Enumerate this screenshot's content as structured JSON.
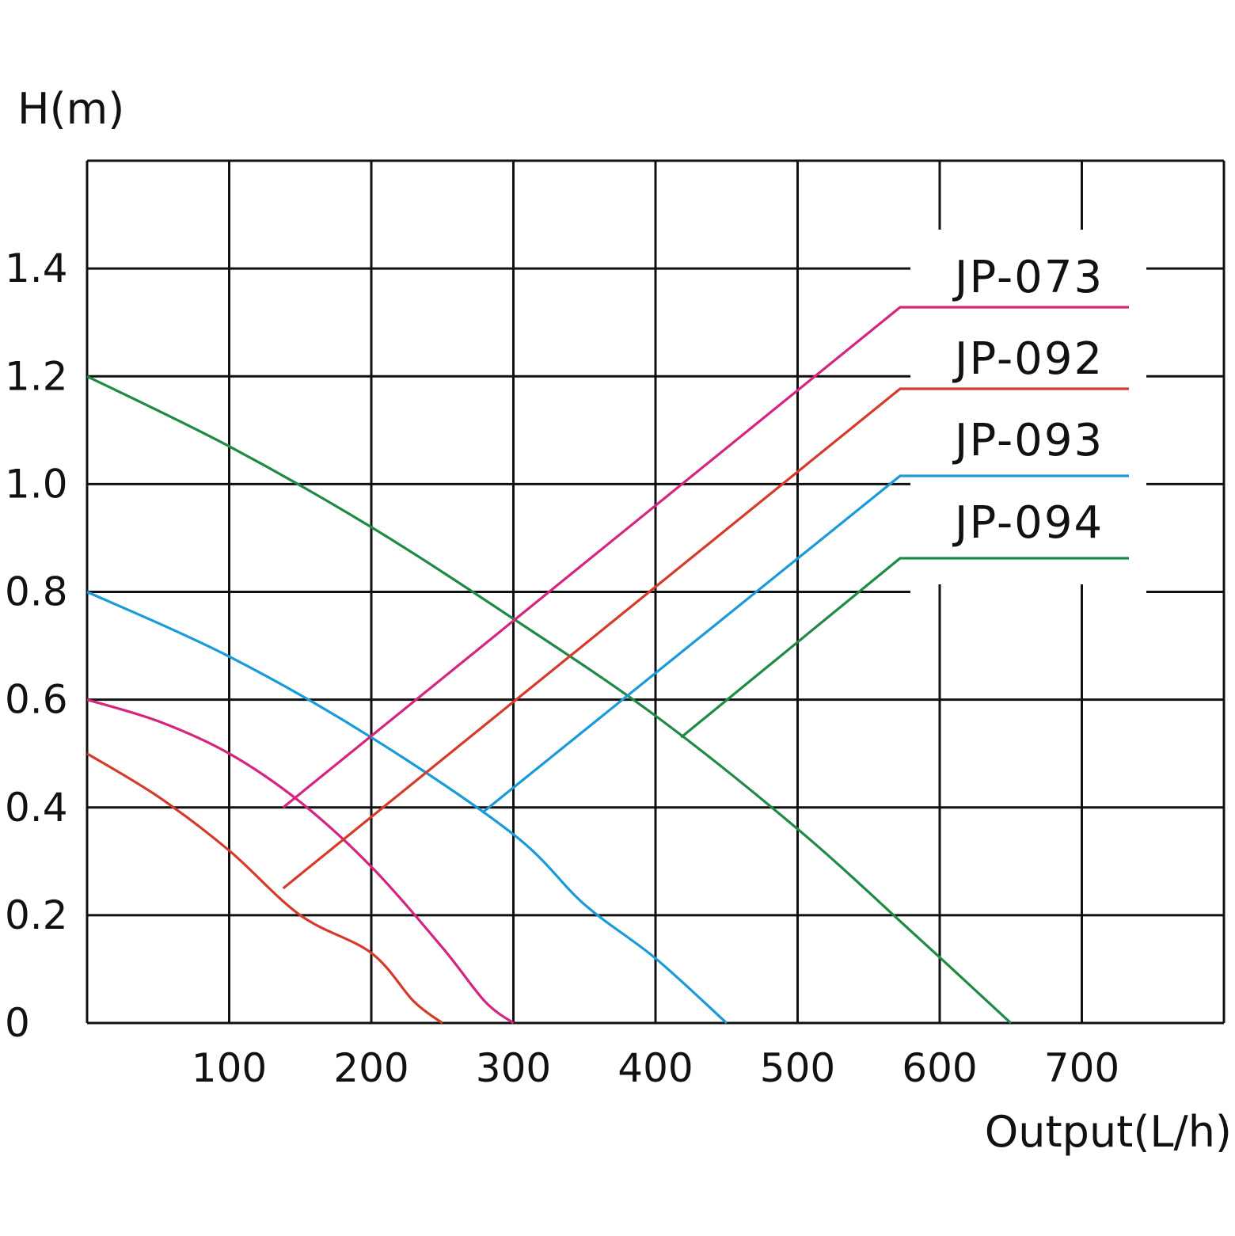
{
  "chart_data": {
    "type": "line",
    "ylabel": "H(m)",
    "xlabel": "Output(L/h)",
    "x_ticks": [
      "100",
      "200",
      "300",
      "400",
      "500",
      "600",
      "700"
    ],
    "y_ticks": [
      "0",
      "0.2",
      "0.4",
      "0.6",
      "0.8",
      "1.0",
      "1.2",
      "1.4"
    ],
    "xlim": [
      0,
      800
    ],
    "ylim": [
      0,
      1.6
    ],
    "grid": true,
    "legend_placement": "right",
    "series": [
      {
        "name": "JP-073",
        "color": "#d6257f",
        "x": [
          0,
          50,
          100,
          150,
          200,
          250,
          280,
          300
        ],
        "y": [
          0.6,
          0.56,
          0.5,
          0.41,
          0.29,
          0.14,
          0.04,
          0.0
        ],
        "leader_at": [
          138,
          0.4
        ]
      },
      {
        "name": "JP-092",
        "color": "#d63a2a",
        "x": [
          0,
          50,
          100,
          150,
          200,
          230,
          250
        ],
        "y": [
          0.5,
          0.42,
          0.32,
          0.2,
          0.13,
          0.04,
          0.0
        ],
        "leader_at": [
          138,
          0.25
        ]
      },
      {
        "name": "JP-093",
        "color": "#1a9ad9",
        "x": [
          0,
          100,
          200,
          300,
          350,
          400,
          450
        ],
        "y": [
          0.8,
          0.68,
          0.53,
          0.35,
          0.22,
          0.12,
          0.0
        ],
        "leader_at": [
          278,
          0.39
        ]
      },
      {
        "name": "JP-094",
        "color": "#1f8a46",
        "x": [
          0,
          100,
          200,
          300,
          400,
          500,
          580,
          650
        ],
        "y": [
          1.2,
          1.07,
          0.92,
          0.75,
          0.57,
          0.36,
          0.17,
          0.0
        ],
        "leader_at": [
          418,
          0.53
        ]
      }
    ]
  }
}
